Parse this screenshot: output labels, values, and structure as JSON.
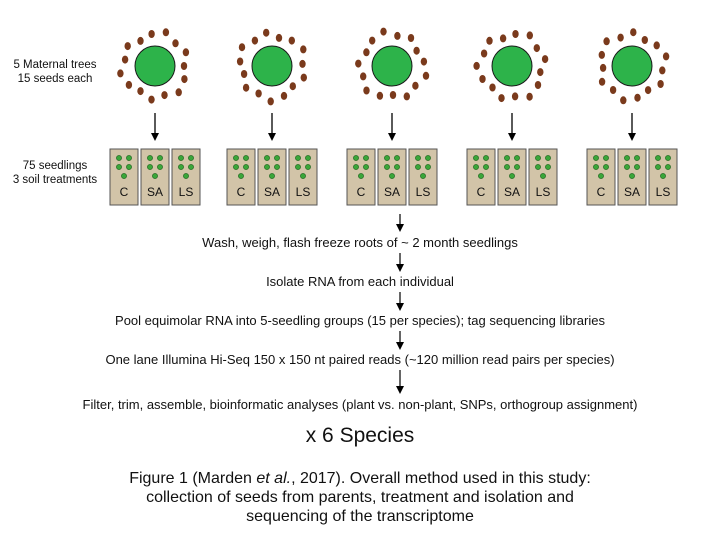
{
  "labels": {
    "maternal_line1": "5 Maternal trees",
    "maternal_line2": "15 seeds each",
    "seedlings_line1": "75 seedlings",
    "seedlings_line2": "3 soil treatments"
  },
  "treatments": [
    "C",
    "SA",
    "LS"
  ],
  "tree_count": 5,
  "seeds_per_tree": 15,
  "colors": {
    "tree": "#2db34a",
    "seed": "#7a3a1c",
    "tray": "#d2c4a8",
    "seedling": "#3aa63a"
  },
  "steps": [
    "Wash, weigh, flash freeze roots of ~ 2 month seedlings",
    "Isolate RNA from each individual",
    "Pool equimolar RNA into 5-seedling groups (15 per species); tag sequencing libraries",
    "One lane Illumina Hi-Seq 150 x 150 nt paired reads (~120 million read pairs per species)",
    "Filter, trim, assemble, bioinformatic analyses (plant vs. non-plant, SNPs, orthogroup assignment)"
  ],
  "multiplier": "x 6 Species",
  "caption": {
    "prefix": "Figure 1 (Marden ",
    "italic": "et al.",
    "suffix": ", 2017). Overall method used in this study:",
    "line2": "collection of seeds from parents, treatment and isolation and",
    "line3": "sequencing of the transcriptome"
  }
}
